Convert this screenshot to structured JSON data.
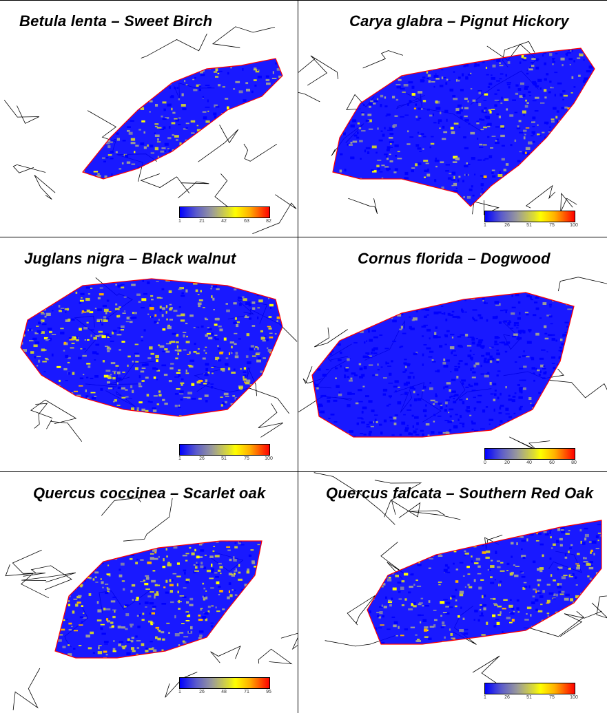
{
  "figure": {
    "panels": [
      {
        "title": "Betula lenta – Sweet Birch",
        "legend_ticks": [
          "1",
          "21",
          "42",
          "63",
          "82"
        ]
      },
      {
        "title": "Carya glabra – Pignut Hickory",
        "legend_ticks": [
          "1",
          "26",
          "51",
          "75",
          "100"
        ]
      },
      {
        "title": "Juglans nigra – Black walnut",
        "legend_ticks": [
          "1",
          "26",
          "51",
          "75",
          "100"
        ]
      },
      {
        "title": "Cornus florida – Dogwood",
        "legend_ticks": [
          "0",
          "20",
          "40",
          "60",
          "80"
        ]
      },
      {
        "title": "Quercus coccinea – Scarlet oak",
        "legend_ticks": [
          "1",
          "26",
          "48",
          "71",
          "95"
        ]
      },
      {
        "title": "Quercus falcata – Southern Red Oak",
        "legend_ticks": [
          "1",
          "26",
          "51",
          "75",
          "100"
        ]
      }
    ]
  },
  "colors": {
    "low": "#0000ff",
    "mid": "#9a9a9a",
    "midhigh": "#ffff00",
    "high": "#ff0000",
    "boundary": "#ff0000",
    "border_lines": "#000000"
  }
}
